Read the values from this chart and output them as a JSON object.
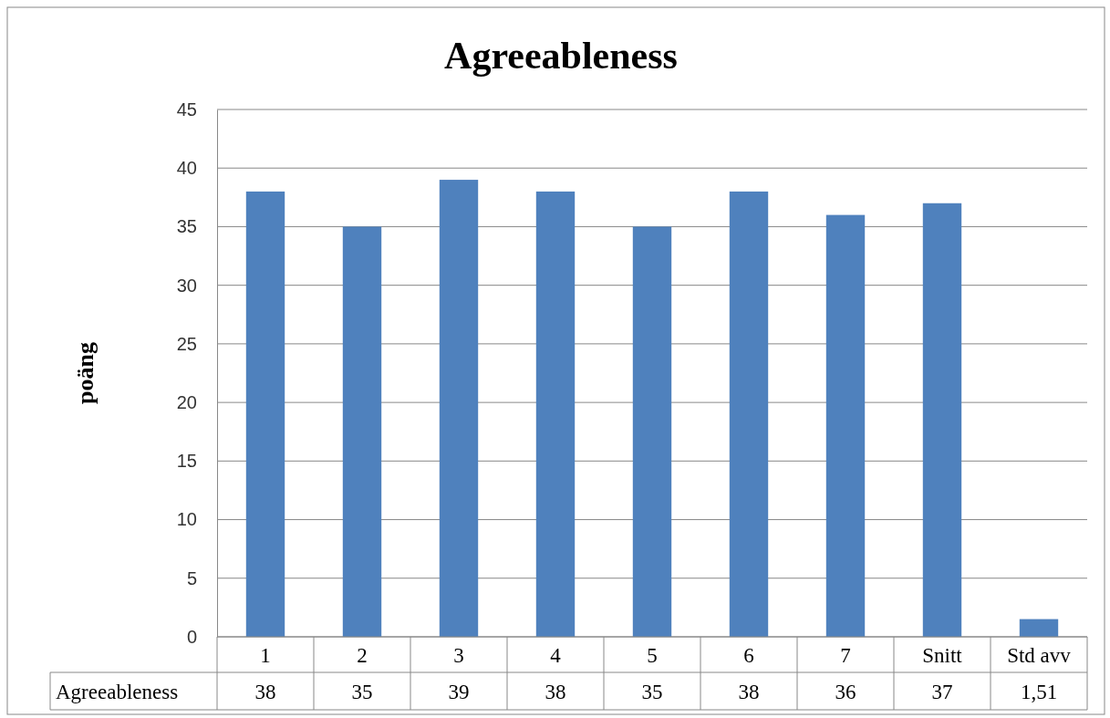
{
  "chart_data": {
    "type": "bar",
    "title": "Agreeableness",
    "ylabel": "poäng",
    "categories": [
      "1",
      "2",
      "3",
      "4",
      "5",
      "6",
      "7",
      "Snitt",
      "Std avv"
    ],
    "series": [
      {
        "name": "Agreeableness",
        "color": "#4f81bd",
        "values": [
          38,
          35,
          39,
          38,
          35,
          38,
          36,
          37,
          1.51
        ],
        "value_labels": [
          "38",
          "35",
          "39",
          "38",
          "35",
          "38",
          "36",
          "37",
          "1,51"
        ]
      }
    ],
    "ylim": [
      0,
      45
    ],
    "yticks": [
      0,
      5,
      10,
      15,
      20,
      25,
      30,
      35,
      40,
      45
    ],
    "grid": "y"
  }
}
